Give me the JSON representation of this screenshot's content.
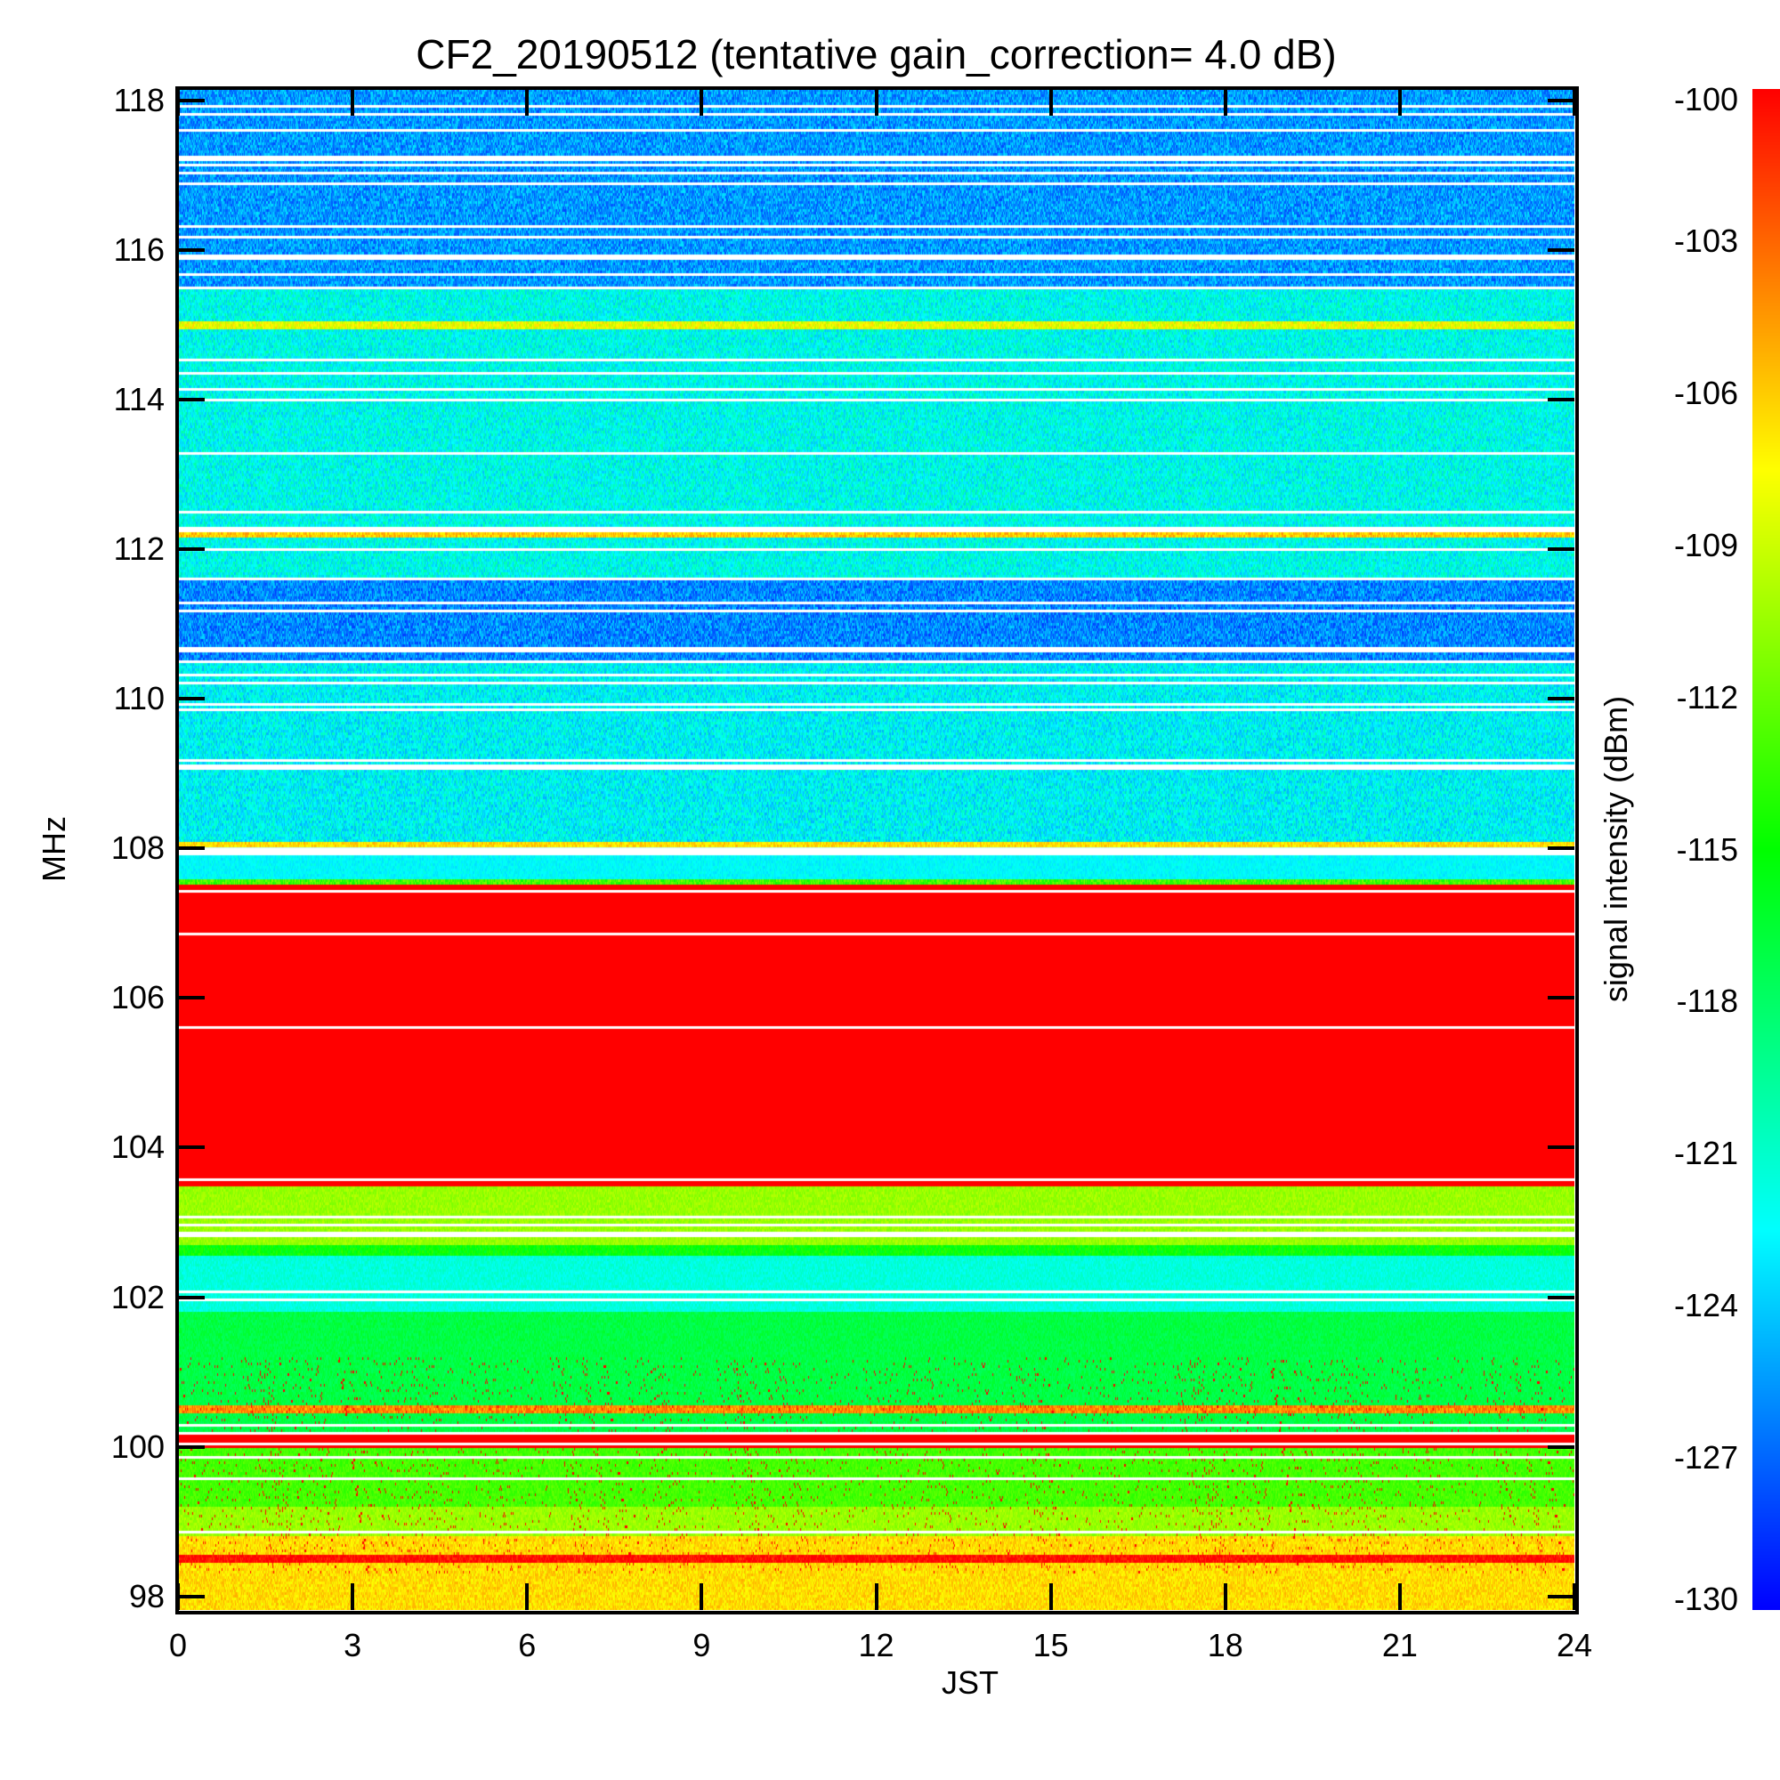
{
  "chart_data": {
    "type": "heatmap",
    "title": "CF2_20190512 (tentative gain_correction=  4.0 dB)",
    "xlabel": "JST",
    "ylabel": "MHz",
    "colorbar_label": "signal intensity (dBm)",
    "xlim": [
      0,
      24
    ],
    "ylim": [
      97.82,
      118.15
    ],
    "xticks": [
      "0",
      "3",
      "6",
      "9",
      "12",
      "15",
      "18",
      "21",
      "24"
    ],
    "yticks": [
      "98",
      "100",
      "102",
      "104",
      "106",
      "108",
      "110",
      "112",
      "114",
      "116",
      "118"
    ],
    "colorbar_range": [
      -130,
      -100
    ],
    "colorbar_ticks": [
      "-100",
      "-103",
      "-106",
      "-109",
      "-112",
      "-115",
      "-118",
      "-121",
      "-124",
      "-127",
      "-130"
    ],
    "colormap": [
      "#0000ff",
      "#00ffff",
      "#00ff00",
      "#ffff00",
      "#ff0000"
    ],
    "bands": [
      {
        "from": 115.5,
        "to": 118.15,
        "mean_dbm": -125.5,
        "noise": 2.5
      },
      {
        "from": 111.6,
        "to": 115.5,
        "mean_dbm": -122,
        "noise": 2.5
      },
      {
        "from": 110.5,
        "to": 111.6,
        "mean_dbm": -126,
        "noise": 2.5
      },
      {
        "from": 108.1,
        "to": 110.5,
        "mean_dbm": -122.5,
        "noise": 2.5
      },
      {
        "from": 107.6,
        "to": 108.0,
        "mean_dbm": -122.5,
        "noise": 1
      },
      {
        "from": 107.5,
        "to": 107.6,
        "mean_dbm": -113,
        "noise": 2
      },
      {
        "from": 103.5,
        "to": 107.5,
        "mean_dbm": -99,
        "noise": 0.5
      },
      {
        "from": 102.7,
        "to": 103.5,
        "mean_dbm": -110.5,
        "noise": 1
      },
      {
        "from": 102.55,
        "to": 102.7,
        "mean_dbm": -115,
        "noise": 1.5
      },
      {
        "from": 101.8,
        "to": 102.55,
        "mean_dbm": -121.5,
        "noise": 1
      },
      {
        "from": 100.15,
        "to": 101.8,
        "mean_dbm": -117,
        "noise": 1
      },
      {
        "from": 100.0,
        "to": 100.15,
        "mean_dbm": -99,
        "noise": 0.3
      },
      {
        "from": 99.2,
        "to": 100.0,
        "mean_dbm": -113,
        "noise": 1
      },
      {
        "from": 98.8,
        "to": 99.2,
        "mean_dbm": -110.5,
        "noise": 1
      },
      {
        "from": 97.82,
        "to": 98.8,
        "mean_dbm": -106.5,
        "noise": 1.5
      }
    ],
    "lines": [
      {
        "freq": 115.0,
        "mean_dbm": -108
      },
      {
        "freq": 112.2,
        "mean_dbm": -106
      },
      {
        "freq": 100.5,
        "mean_dbm": -104
      },
      {
        "freq": 98.5,
        "mean_dbm": -100
      }
    ]
  }
}
